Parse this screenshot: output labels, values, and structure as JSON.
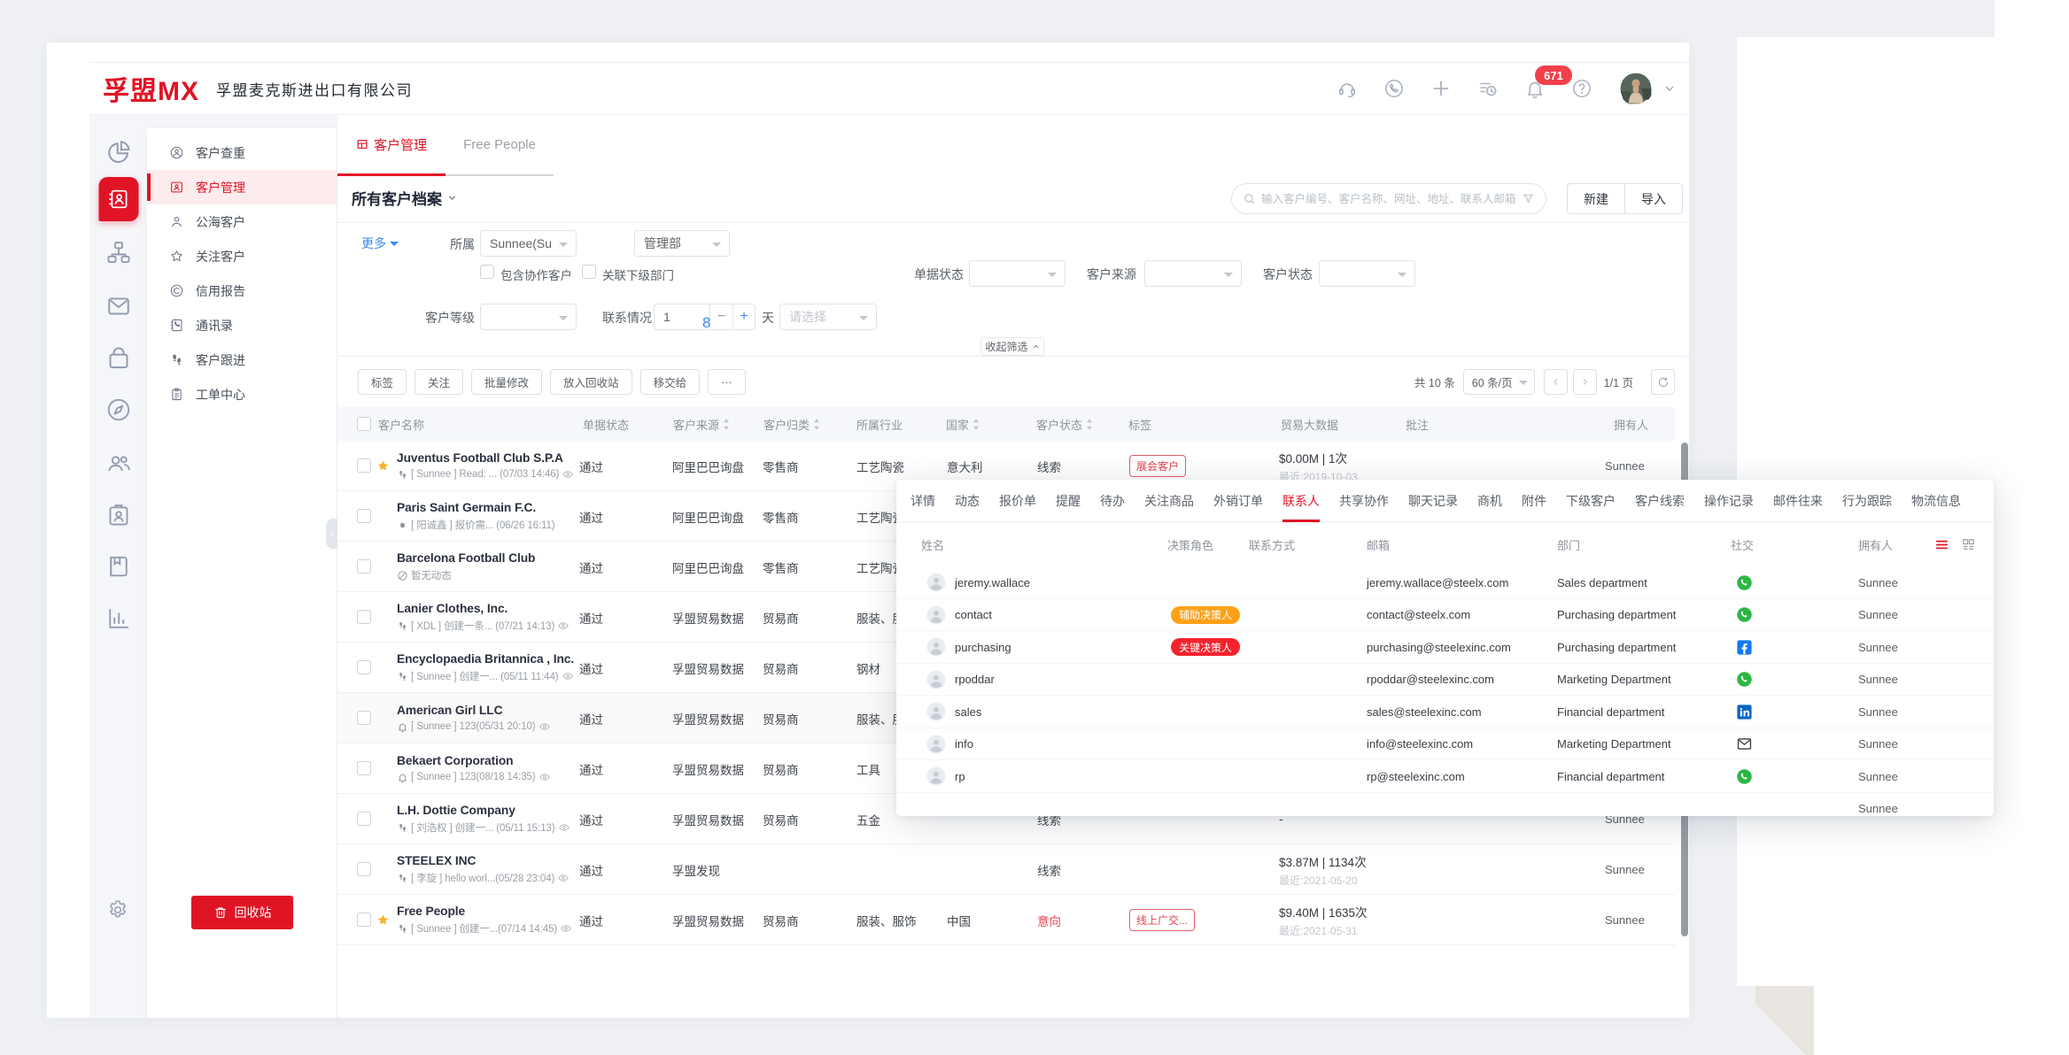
{
  "brand": {
    "logo": "孚盟MX",
    "company": "孚盟麦克斯进出口有限公司",
    "accent": "#e11426"
  },
  "topbar": {
    "badge": "671",
    "icons": [
      "headset-icon",
      "call-icon",
      "plus-icon",
      "task-history-icon",
      "bell-icon",
      "help-icon"
    ]
  },
  "rail": {
    "items": [
      {
        "icon": "pie-chart",
        "active": false
      },
      {
        "icon": "contact-book",
        "active": true
      },
      {
        "icon": "org-chart",
        "active": false
      },
      {
        "icon": "mail",
        "active": false
      },
      {
        "icon": "shopping-bag",
        "active": false
      },
      {
        "icon": "compass",
        "active": false
      },
      {
        "icon": "team",
        "active": false
      },
      {
        "icon": "id-badge",
        "active": false
      },
      {
        "icon": "notebook",
        "active": false
      },
      {
        "icon": "bar-chart",
        "active": false
      }
    ]
  },
  "sidebar": {
    "items": [
      {
        "label": "客户查重",
        "icon": "person-circle",
        "active": false
      },
      {
        "label": "客户管理",
        "icon": "id-card",
        "active": true
      },
      {
        "label": "公海客户",
        "icon": "person",
        "active": false
      },
      {
        "label": "关注客户",
        "icon": "star",
        "active": false
      },
      {
        "label": "信用报告",
        "icon": "credit-c",
        "active": false
      },
      {
        "label": "通讯录",
        "icon": "phone-book",
        "active": false
      },
      {
        "label": "客户跟进",
        "icon": "footprints",
        "active": false
      },
      {
        "label": "工单中心",
        "icon": "clipboard",
        "active": false
      }
    ],
    "recycle_label": "回收站"
  },
  "tabs": [
    {
      "label": "客户管理",
      "active": true,
      "icon": "grid"
    },
    {
      "label": "Free People",
      "active": false
    }
  ],
  "toolbar": {
    "title": "所有客户档案",
    "search_placeholder": "输入客户编号、客户名称、网址、地址、联系人邮箱、联系",
    "btn_new": "新建",
    "btn_import": "导入"
  },
  "filters": {
    "more": "更多",
    "belong_label": "所属",
    "belong_value": "Sunnee(Su",
    "dept_value": "管理部",
    "include_co": "包含协作客户",
    "link_sub": "关联下级部门",
    "doc_status_label": "单据状态",
    "cust_source_label": "客户来源",
    "cust_status_label": "客户状态",
    "grade_label": "客户等级",
    "contact_label": "联系情况",
    "contact_value": "1",
    "contact_hint": "8",
    "day_unit": "天",
    "select_placeholder": "请选择",
    "collapse": "收起筛选",
    "minus": "−",
    "plus": "+"
  },
  "actions": [
    "标签",
    "关注",
    "批量修改",
    "放入回收站",
    "移交给",
    "···"
  ],
  "pagination": {
    "total": "共 10 条",
    "per_page": "60 条/页",
    "page": "1/1 页"
  },
  "table": {
    "columns": [
      "客户名称",
      "单据状态",
      "客户来源",
      "客户归类",
      "所属行业",
      "国家",
      "客户状态",
      "标签",
      "贸易大数据",
      "批注",
      "拥有人"
    ],
    "rows": [
      {
        "name": "Juventus Football Club S.P.A",
        "starred": true,
        "icon": "footprints",
        "note": "[ Sunnee ] Read: ... (07/03 14:46)",
        "eye": true,
        "status": "通过",
        "source": "阿里巴巴询盘",
        "category": "零售商",
        "industry": "工艺陶瓷",
        "country": "意大利",
        "state": "线索",
        "state_red": false,
        "tag": "展会客户",
        "trade": "$0.00M | 1次",
        "trade_date": "最近:2019-10-03",
        "owner": "Sunnee",
        "highlighted": false
      },
      {
        "name": "Paris Saint Germain F.C.",
        "starred": false,
        "icon": "dot",
        "note": "[ 阳诚鑫 ] 报价需... (06/26 16:11)",
        "eye": false,
        "status": "通过",
        "source": "阿里巴巴询盘",
        "category": "零售商",
        "industry": "工艺陶瓷",
        "country": "",
        "state": "",
        "state_red": false,
        "tag": "",
        "trade": "",
        "trade_date": "",
        "owner": "",
        "highlighted": false
      },
      {
        "name": "Barcelona Football Club",
        "starred": false,
        "icon": "ban",
        "note": "暂无动态",
        "eye": false,
        "status": "通过",
        "source": "阿里巴巴询盘",
        "category": "零售商",
        "industry": "工艺陶瓷",
        "country": "",
        "state": "",
        "state_red": false,
        "tag": "",
        "trade": "",
        "trade_date": "",
        "owner": "",
        "highlighted": false
      },
      {
        "name": "Lanier Clothes, Inc.",
        "starred": false,
        "icon": "footprints",
        "note": "[ XDL ] 创建一条... (07/21 14:13)",
        "eye": true,
        "status": "通过",
        "source": "孚盟贸易数据",
        "category": "贸易商",
        "industry": "服装、服饰",
        "country": "",
        "state": "",
        "state_red": false,
        "tag": "",
        "trade": "",
        "trade_date": "",
        "owner": "",
        "highlighted": false
      },
      {
        "name": "Encyclopaedia Britannica , Inc.",
        "starred": false,
        "icon": "footprints",
        "note": "[ Sunnee ] 创建一... (05/11 11:44)",
        "eye": true,
        "status": "通过",
        "source": "孚盟贸易数据",
        "category": "贸易商",
        "industry": "钢材",
        "country": "",
        "state": "",
        "state_red": false,
        "tag": "",
        "trade": "",
        "trade_date": "",
        "owner": "",
        "highlighted": false
      },
      {
        "name": "American Girl LLC",
        "starred": false,
        "icon": "bell-sub",
        "note": "[ Sunnee ] 123(05/31 20:10)",
        "eye": true,
        "status": "通过",
        "source": "孚盟贸易数据",
        "category": "贸易商",
        "industry": "服装、服饰",
        "country": "",
        "state": "",
        "state_red": false,
        "tag": "",
        "trade": "",
        "trade_date": "",
        "owner": "",
        "highlighted": true
      },
      {
        "name": "Bekaert Corporation",
        "starred": false,
        "icon": "bell-sub",
        "note": "[ Sunnee ] 123(08/18 14:35)",
        "eye": true,
        "status": "通过",
        "source": "孚盟贸易数据",
        "category": "贸易商",
        "industry": "工具",
        "country": "",
        "state": "",
        "state_red": false,
        "tag": "",
        "trade": "",
        "trade_date": "",
        "owner": "",
        "highlighted": false
      },
      {
        "name": "L.H. Dottie Company",
        "starred": false,
        "icon": "footprints",
        "note": "[ 刘浩权 ] 创建一... (05/11 15:13)",
        "eye": true,
        "status": "通过",
        "source": "孚盟贸易数据",
        "category": "贸易商",
        "industry": "五金",
        "country": "",
        "state": "线索",
        "state_red": false,
        "tag": "",
        "trade": "-",
        "trade_date": "",
        "owner": "Sunnee",
        "highlighted": false
      },
      {
        "name": "STEELEX INC",
        "starred": false,
        "icon": "footprints",
        "note": "[ 李旋 ] hello worl...(05/28 23:04)",
        "eye": true,
        "status": "通过",
        "source": "孚盟发现",
        "category": "",
        "industry": "",
        "country": "",
        "state": "线索",
        "state_red": false,
        "tag": "",
        "trade": "$3.87M | 1134次",
        "trade_date": "最近:2021-05-20",
        "owner": "Sunnee",
        "highlighted": false
      },
      {
        "name": "Free People",
        "starred": true,
        "icon": "footprints",
        "note": "[ Sunnee ] 创建一...(07/14 14:45)",
        "eye": true,
        "status": "通过",
        "source": "孚盟贸易数据",
        "category": "贸易商",
        "industry": "服装、服饰",
        "country": "中国",
        "state": "意向",
        "state_red": true,
        "tag": "线上广交...",
        "trade": "$9.40M | 1635次",
        "trade_date": "最近:2021-05-31",
        "owner": "Sunnee",
        "highlighted": false
      }
    ]
  },
  "panel": {
    "tabs": [
      {
        "label": "详情",
        "active": false
      },
      {
        "label": "动态",
        "active": false
      },
      {
        "label": "报价单",
        "active": false
      },
      {
        "label": "提醒",
        "active": false
      },
      {
        "label": "待办",
        "active": false
      },
      {
        "label": "关注商品",
        "active": false
      },
      {
        "label": "外销订单",
        "active": false
      },
      {
        "label": "联系人",
        "active": true
      },
      {
        "label": "共享协作",
        "active": false
      },
      {
        "label": "聊天记录",
        "active": false
      },
      {
        "label": "商机",
        "active": false
      },
      {
        "label": "附件",
        "active": false
      },
      {
        "label": "下级客户",
        "active": false
      },
      {
        "label": "客户线索",
        "active": false
      },
      {
        "label": "操作记录",
        "active": false
      },
      {
        "label": "邮件往来",
        "active": false
      },
      {
        "label": "行为跟踪",
        "active": false
      },
      {
        "label": "物流信息",
        "active": false
      }
    ],
    "columns": [
      "姓名",
      "决策角色",
      "联系方式",
      "邮箱",
      "部门",
      "社交",
      "拥有人"
    ],
    "rows": [
      {
        "name": "jeremy.wallace",
        "role": "",
        "role_color": "",
        "email": "jeremy.wallace@steelx.com",
        "dept": "Sales department",
        "social": "whatsapp",
        "owner": "Sunnee"
      },
      {
        "name": "contact",
        "role": "辅助决策人",
        "role_color": "orange",
        "email": "contact@steelx.com",
        "dept": "Purchasing department",
        "social": "whatsapp",
        "owner": "Sunnee"
      },
      {
        "name": "purchasing",
        "role": "关键决策人",
        "role_color": "red",
        "email": "purchasing@steelexinc.com",
        "dept": "Purchasing department",
        "social": "facebook",
        "owner": "Sunnee"
      },
      {
        "name": "rpoddar",
        "role": "",
        "role_color": "",
        "email": "rpoddar@steelexinc.com",
        "dept": "Marketing Department",
        "social": "whatsapp",
        "owner": "Sunnee"
      },
      {
        "name": "sales",
        "role": "",
        "role_color": "",
        "email": "sales@steelexinc.com",
        "dept": "Financial department",
        "social": "linkedin",
        "owner": "Sunnee"
      },
      {
        "name": "info",
        "role": "",
        "role_color": "",
        "email": "info@steelexinc.com",
        "dept": "Marketing Department",
        "social": "mail-line",
        "owner": "Sunnee"
      },
      {
        "name": "rp",
        "role": "",
        "role_color": "",
        "email": "rp@steelexinc.com",
        "dept": "Financial department",
        "social": "whatsapp",
        "owner": "Sunnee"
      },
      {
        "name": "",
        "role": "",
        "role_color": "",
        "email": "",
        "dept": "",
        "social": "",
        "owner": "Sunnee"
      }
    ]
  }
}
